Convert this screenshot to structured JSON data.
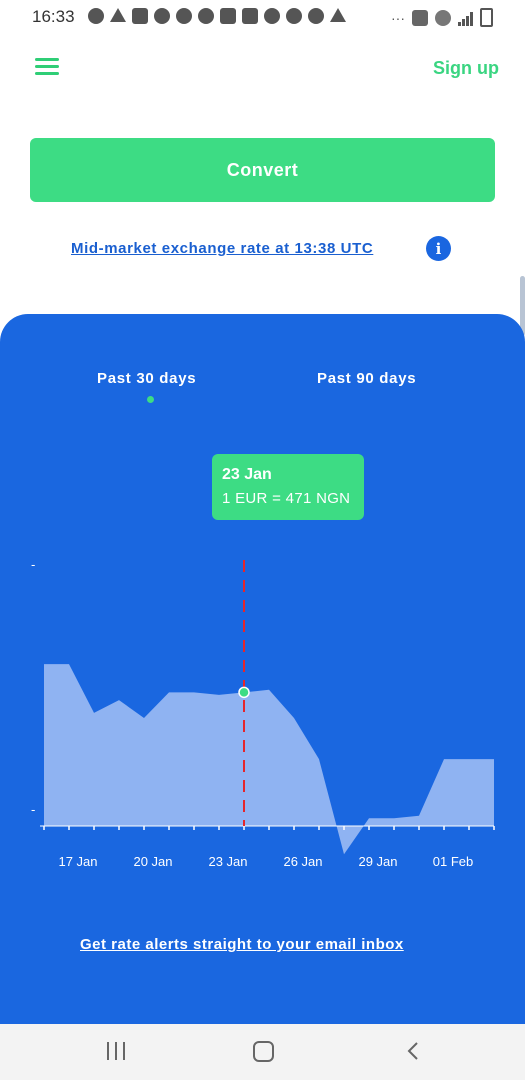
{
  "status_bar": {
    "time": "16:33"
  },
  "header": {
    "signup_label": "Sign up"
  },
  "convert": {
    "button_label": "Convert"
  },
  "rate_info": {
    "link_text": "Mid-market exchange rate at 13:38 UTC",
    "info_icon": "info-icon"
  },
  "chart_panel": {
    "tabs": [
      {
        "label": "Past 30 days",
        "selected": true
      },
      {
        "label": "Past 90 days",
        "selected": false
      }
    ],
    "tooltip": {
      "date": "23 Jan",
      "rate": "1 EUR = 471 NGN"
    },
    "alerts_link": "Get rate alerts straight to your email inbox"
  },
  "chart_data": {
    "type": "area",
    "x": [
      "15 Jan",
      "16 Jan",
      "17 Jan",
      "18 Jan",
      "19 Jan",
      "20 Jan",
      "21 Jan",
      "22 Jan",
      "23 Jan",
      "24 Jan",
      "25 Jan",
      "26 Jan",
      "27 Jan",
      "28 Jan",
      "29 Jan",
      "30 Jan",
      "31 Jan",
      "01 Feb",
      "02 Feb"
    ],
    "values": [
      0.63,
      0.63,
      0.44,
      0.49,
      0.42,
      0.52,
      0.52,
      0.51,
      0.52,
      0.53,
      0.42,
      0.26,
      -0.11,
      0.03,
      0.03,
      0.04,
      0.26,
      0.26,
      0.26
    ],
    "tick_labels": [
      "17 Jan",
      "20 Jan",
      "23 Jan",
      "26 Jan",
      "29 Jan",
      "01 Feb"
    ],
    "y_tick_labels": [
      "-",
      "-"
    ],
    "highlight": {
      "x": "23 Jan",
      "value": 471,
      "marker_color": "#3ddc84",
      "line_color": "#e5262b"
    },
    "colors": {
      "fill": "#8fb3f2",
      "background": "#1a67e0",
      "ticks": "#ffffff"
    },
    "grid": false,
    "legend": "none"
  },
  "nav_bar": {
    "recents": "recents-icon",
    "home": "home-icon",
    "back": "back-icon"
  }
}
